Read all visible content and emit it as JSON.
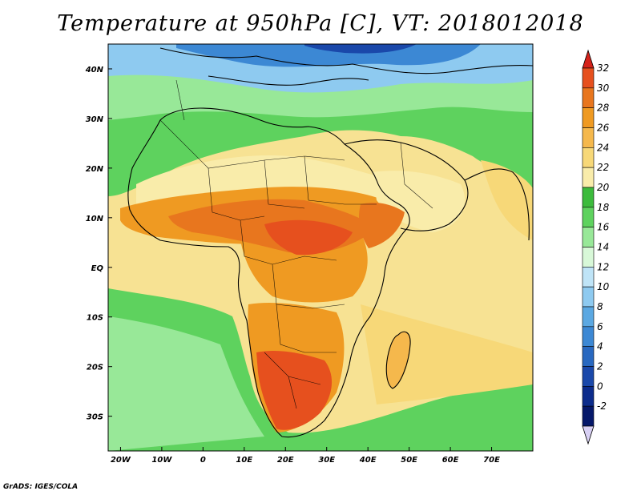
{
  "title": "Temperature at 950hPa [C], VT: 2018012018",
  "credit": "GrADS: IGES/COLA",
  "map": {
    "lon_labels": [
      "20W",
      "10W",
      "0",
      "10E",
      "20E",
      "30E",
      "40E",
      "50E",
      "60E",
      "70E"
    ],
    "lat_labels": [
      "40N",
      "30N",
      "20N",
      "10N",
      "EQ",
      "10S",
      "20S",
      "30S"
    ],
    "lon_range": [
      -23,
      80
    ],
    "lat_range": [
      -37,
      45
    ]
  },
  "colorbar": {
    "labels": [
      "32",
      "30",
      "28",
      "26",
      "24",
      "22",
      "20",
      "18",
      "16",
      "14",
      "12",
      "10",
      "8",
      "6",
      "4",
      "2",
      "0",
      "-2"
    ],
    "colors": [
      "#e6501e",
      "#e8761e",
      "#ef9a22",
      "#f5b84c",
      "#f7d878",
      "#f9ecaa",
      "#3cbb3c",
      "#5ed25e",
      "#98e898",
      "#d8f8d8",
      "#bfe4f7",
      "#8ecaf0",
      "#5ba8e2",
      "#3c88d4",
      "#2868c0",
      "#1a48aa",
      "#0c2c8c",
      "#05186a"
    ],
    "top_arrow_color": "#d4221a",
    "bottom_arrow_color": "#d8d0f4"
  }
}
